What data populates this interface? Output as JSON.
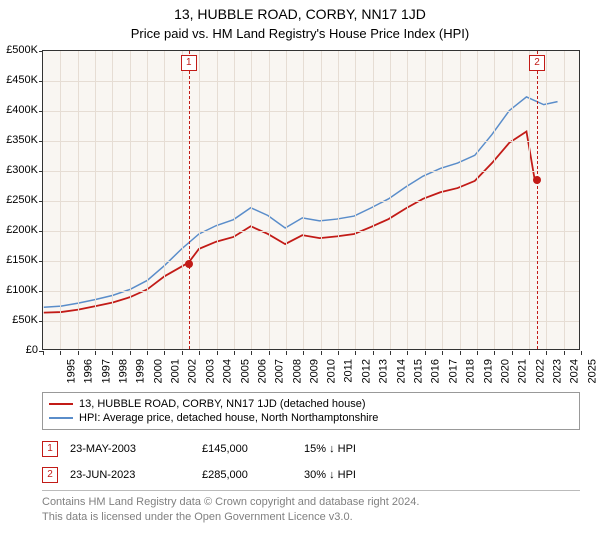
{
  "header": {
    "title": "13, HUBBLE ROAD, CORBY, NN17 1JD",
    "subtitle": "Price paid vs. HM Land Registry's House Price Index (HPI)"
  },
  "chart": {
    "type": "line",
    "background_color": "#f9f6f2",
    "grid_color": "#e6ddd4",
    "border_color": "#333333",
    "x": {
      "min": 1995,
      "max": 2026,
      "tick_step": 1,
      "labels_every": 1
    },
    "y": {
      "min": 0,
      "max": 500000,
      "tick_step": 50000,
      "prefix": "£",
      "suffix": "K",
      "divide": 1000
    },
    "series": [
      {
        "name": "HPI: Average price, detached house, North Northamptonshire",
        "color": "#5a8dca",
        "width": 1.5,
        "points": [
          [
            1995,
            70000
          ],
          [
            1996,
            72000
          ],
          [
            1997,
            77000
          ],
          [
            1998,
            83000
          ],
          [
            1999,
            90000
          ],
          [
            2000,
            100000
          ],
          [
            2001,
            115000
          ],
          [
            2002,
            140000
          ],
          [
            2003,
            168000
          ],
          [
            2004,
            193000
          ],
          [
            2005,
            207000
          ],
          [
            2006,
            217000
          ],
          [
            2007,
            237000
          ],
          [
            2008,
            224000
          ],
          [
            2009,
            203000
          ],
          [
            2010,
            220000
          ],
          [
            2011,
            215000
          ],
          [
            2012,
            218000
          ],
          [
            2013,
            223000
          ],
          [
            2014,
            237000
          ],
          [
            2015,
            252000
          ],
          [
            2016,
            272000
          ],
          [
            2017,
            290000
          ],
          [
            2018,
            303000
          ],
          [
            2019,
            312000
          ],
          [
            2020,
            325000
          ],
          [
            2021,
            360000
          ],
          [
            2022,
            400000
          ],
          [
            2023,
            423000
          ],
          [
            2024,
            410000
          ],
          [
            2024.8,
            415000
          ]
        ]
      },
      {
        "name": "13, HUBBLE ROAD, CORBY, NN17 1JD (detached house)",
        "color": "#c21b17",
        "width": 1.8,
        "points": [
          [
            1995,
            61000
          ],
          [
            1996,
            62000
          ],
          [
            1997,
            66000
          ],
          [
            1998,
            72000
          ],
          [
            1999,
            78000
          ],
          [
            2000,
            87000
          ],
          [
            2001,
            100000
          ],
          [
            2002,
            122000
          ],
          [
            2003.4,
            145000
          ],
          [
            2004,
            168000
          ],
          [
            2005,
            180000
          ],
          [
            2006,
            188000
          ],
          [
            2007,
            206000
          ],
          [
            2008,
            193000
          ],
          [
            2009,
            176000
          ],
          [
            2010,
            191000
          ],
          [
            2011,
            186000
          ],
          [
            2012,
            189000
          ],
          [
            2013,
            193000
          ],
          [
            2014,
            205000
          ],
          [
            2015,
            218000
          ],
          [
            2016,
            236000
          ],
          [
            2017,
            252000
          ],
          [
            2018,
            263000
          ],
          [
            2019,
            270000
          ],
          [
            2020,
            282000
          ],
          [
            2021,
            312000
          ],
          [
            2022,
            346000
          ],
          [
            2023,
            365000
          ],
          [
            2023.47,
            285000
          ]
        ]
      }
    ],
    "markers": [
      {
        "n": 1,
        "x": 2003.4,
        "y": 145000,
        "line_color": "#c21b17"
      },
      {
        "n": 2,
        "x": 2023.47,
        "y": 285000,
        "line_color": "#c21b17"
      }
    ]
  },
  "legend": {
    "items": [
      {
        "color": "#c21b17",
        "label": "13, HUBBLE ROAD, CORBY, NN17 1JD (detached house)"
      },
      {
        "color": "#5a8dca",
        "label": "HPI: Average price, detached house, North Northamptonshire"
      }
    ]
  },
  "transactions": [
    {
      "n": 1,
      "date": "23-MAY-2003",
      "price": "£145,000",
      "pct": "15% ↓ HPI"
    },
    {
      "n": 2,
      "date": "23-JUN-2023",
      "price": "£285,000",
      "pct": "30% ↓ HPI"
    }
  ],
  "footer": {
    "line1": "Contains HM Land Registry data © Crown copyright and database right 2024.",
    "line2": "This data is licensed under the Open Government Licence v3.0."
  }
}
